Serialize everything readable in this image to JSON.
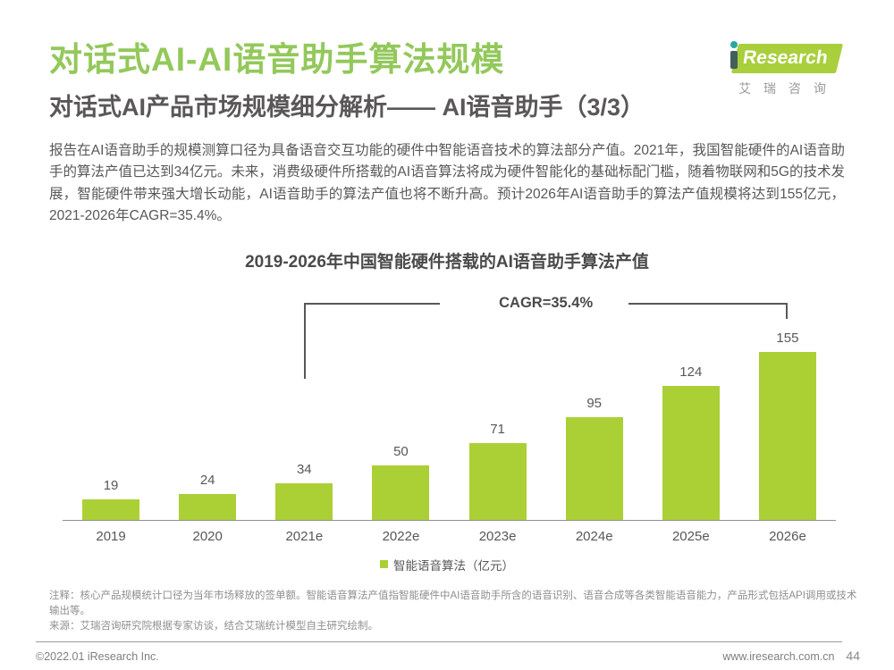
{
  "page": {
    "title": "对话式AI-AI语音助手算法规模",
    "subtitle": "对话式AI产品市场规模细分解析—— AI语音助手（3/3）",
    "page_number": "44"
  },
  "logo": {
    "brand_text": "Research",
    "brand_cn": "艾 瑞 咨 询"
  },
  "paragraph": "报告在AI语音助手的规模测算口径为具备语音交互功能的硬件中智能语音技术的算法部分产值。2021年，我国智能硬件的AI语音助手的算法产值已达到34亿元。未来，消费级硬件所搭载的AI语音算法将成为硬件智能化的基础标配门槛，随着物联网和5G的技术发展，智能硬件带来强大增长动能，AI语音助手的算法产值也将不断升高。预计2026年AI语音助手的算法产值规模将达到155亿元，2021-2026年CAGR=35.4%。",
  "chart_data": {
    "type": "bar",
    "title": "2019-2026年中国智能硬件搭载的AI语音助手算法产值",
    "categories": [
      "2019",
      "2020",
      "2021e",
      "2022e",
      "2023e",
      "2024e",
      "2025e",
      "2026e"
    ],
    "values": [
      19,
      24,
      34,
      50,
      71,
      95,
      124,
      155
    ],
    "legend": [
      "智能语音算法（亿元）"
    ],
    "annotation": "CAGR=35.4%",
    "annotation_span": [
      "2021e",
      "2026e"
    ],
    "bar_color": "#abd036",
    "ylim": [
      0,
      170
    ],
    "grid": false,
    "legend_position": "bottom",
    "xlabel": "",
    "ylabel": "亿元"
  },
  "notes": {
    "note1": "注释：核心产品规模统计口径为当年市场释放的签单额。智能语音算法产值指智能硬件中AI语音助手所含的语音识别、语音合成等各类智能语音能力，产品形式包括API调用或技术输出等。",
    "source": "来源：艾瑞咨询研究院根据专家访谈，结合艾瑞统计模型自主研究绘制。"
  },
  "footer": {
    "copyright": "©2022.01 iResearch Inc.",
    "website": "www.iresearch.com.cn"
  },
  "colors": {
    "accent_green": "#93c85b",
    "bar_green": "#abd036",
    "text_dark": "#595757",
    "text_gray": "#8f8f8f"
  }
}
